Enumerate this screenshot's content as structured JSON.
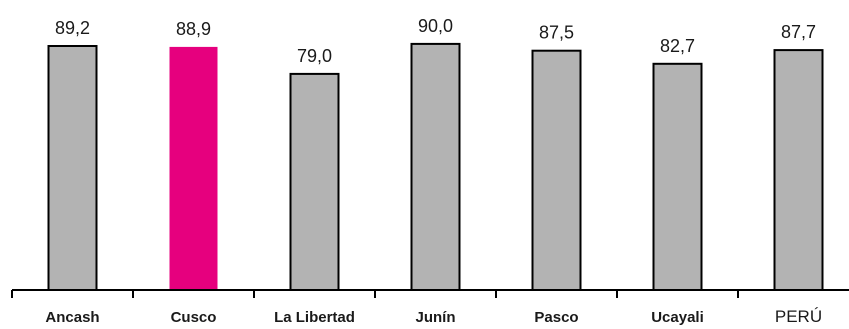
{
  "chart_data": {
    "type": "bar",
    "categories": [
      "Ancash",
      "Cusco",
      "La Libertad",
      "Junín",
      "Pasco",
      "Ucayali",
      "PERÚ"
    ],
    "values": [
      89.2,
      88.9,
      79.0,
      90.0,
      87.5,
      82.7,
      87.7
    ],
    "value_labels": [
      "89,2",
      "88,9",
      "79,0",
      "90,0",
      "87,5",
      "82,7",
      "87,7"
    ],
    "bold_categories": [
      true,
      true,
      true,
      true,
      true,
      true,
      false
    ],
    "ylim": [
      0,
      100
    ],
    "grid": false,
    "legend": "none",
    "colors": {
      "bar": "#b3b3b3",
      "highlight": "#e6007e",
      "outline": "#000000"
    },
    "highlight_index": 1
  }
}
